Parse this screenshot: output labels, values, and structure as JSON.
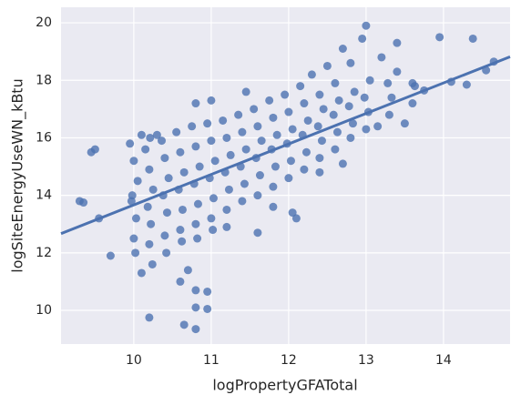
{
  "chart_data": {
    "type": "scatter",
    "xlabel": "logPropertyGFATotal",
    "ylabel": "logSiteEnergyUseWN_kBtu",
    "color": "#4c72b0",
    "xlim": [
      9.06,
      14.86
    ],
    "xticks": [
      10,
      11,
      12,
      13,
      14
    ],
    "ylim": [
      8.83,
      20.54
    ],
    "yticks": [
      10,
      12,
      14,
      16,
      18,
      20
    ],
    "grid": true,
    "x": [
      10.0,
      10.03,
      9.97,
      10.05,
      10.0,
      9.95,
      10.02,
      9.98,
      10.2,
      10.22,
      10.18,
      10.25,
      10.2,
      10.15,
      10.21,
      10.24,
      10.4,
      10.43,
      10.38,
      10.45,
      10.4,
      10.36,
      10.42,
      10.6,
      10.63,
      10.58,
      10.65,
      10.6,
      10.55,
      10.62,
      10.8,
      10.83,
      10.78,
      10.85,
      10.8,
      10.75,
      10.82,
      11.0,
      11.03,
      10.98,
      11.05,
      11.0,
      10.95,
      11.02,
      11.2,
      11.23,
      11.18,
      11.25,
      11.2,
      11.15,
      11.4,
      11.43,
      11.38,
      11.45,
      11.4,
      11.35,
      11.6,
      11.63,
      11.58,
      11.65,
      11.6,
      11.55,
      11.8,
      11.83,
      11.78,
      11.85,
      11.8,
      11.75,
      12.0,
      12.03,
      11.98,
      12.05,
      12.0,
      11.95,
      12.2,
      12.23,
      12.18,
      12.25,
      12.2,
      12.15,
      12.4,
      12.43,
      12.38,
      12.45,
      12.4,
      12.6,
      12.63,
      12.58,
      12.65,
      12.6,
      12.8,
      12.83,
      12.78,
      12.85,
      13.0,
      13.03,
      12.98,
      13.05,
      13.3,
      13.33,
      13.28,
      13.6,
      13.63,
      13.0,
      12.95,
      13.95,
      14.38,
      14.65,
      14.55,
      9.5,
      9.45,
      9.3,
      9.35,
      9.55,
      9.7,
      10.2,
      10.65,
      10.8,
      10.8,
      10.95,
      10.95,
      10.8,
      10.6,
      10.7,
      10.1,
      13.4,
      13.6,
      13.75,
      14.1,
      14.3,
      13.5,
      13.15,
      12.7,
      12.4,
      12.1,
      12.05,
      11.6,
      11.8,
      11.2,
      10.1,
      10.3,
      10.8,
      11.0,
      11.45,
      12.3,
      12.5,
      12.8,
      13.2,
      13.4,
      12.7
    ],
    "values": [
      12.5,
      13.2,
      13.8,
      14.5,
      15.2,
      15.8,
      12.0,
      14.0,
      12.3,
      13.0,
      13.6,
      14.2,
      14.9,
      15.6,
      16.0,
      11.6,
      12.6,
      13.4,
      14.0,
      14.6,
      15.3,
      15.9,
      12.0,
      12.8,
      13.5,
      14.2,
      14.8,
      15.5,
      16.2,
      12.4,
      13.0,
      13.7,
      14.4,
      15.0,
      15.7,
      16.4,
      12.5,
      13.2,
      13.9,
      14.6,
      15.2,
      15.9,
      16.5,
      12.8,
      13.5,
      14.2,
      14.8,
      15.4,
      16.0,
      16.6,
      13.8,
      14.4,
      15.0,
      15.6,
      16.2,
      16.8,
      14.0,
      14.7,
      15.3,
      15.9,
      16.4,
      17.0,
      14.3,
      15.0,
      15.6,
      16.1,
      16.7,
      17.3,
      14.6,
      15.2,
      15.8,
      16.3,
      16.9,
      17.5,
      14.9,
      15.5,
      16.1,
      16.6,
      17.2,
      17.8,
      15.3,
      15.9,
      16.4,
      17.0,
      17.5,
      15.6,
      16.2,
      16.8,
      17.3,
      17.9,
      16.0,
      16.5,
      17.1,
      17.6,
      16.3,
      16.9,
      17.4,
      18.0,
      16.8,
      17.4,
      17.9,
      17.2,
      17.8,
      19.9,
      19.45,
      19.5,
      19.45,
      18.65,
      18.35,
      15.6,
      15.5,
      13.8,
      13.75,
      13.2,
      11.9,
      9.75,
      9.5,
      9.35,
      10.7,
      10.65,
      10.05,
      10.1,
      11.0,
      11.4,
      11.3,
      18.3,
      17.9,
      17.65,
      17.95,
      17.85,
      16.5,
      16.4,
      15.1,
      14.8,
      13.2,
      13.4,
      12.7,
      13.6,
      12.9,
      16.1,
      16.1,
      17.2,
      17.3,
      17.6,
      18.2,
      18.5,
      18.6,
      18.8,
      19.3,
      19.1
    ],
    "fit": {
      "x": [
        9.06,
        14.86
      ],
      "values": [
        12.67,
        18.82
      ]
    }
  }
}
